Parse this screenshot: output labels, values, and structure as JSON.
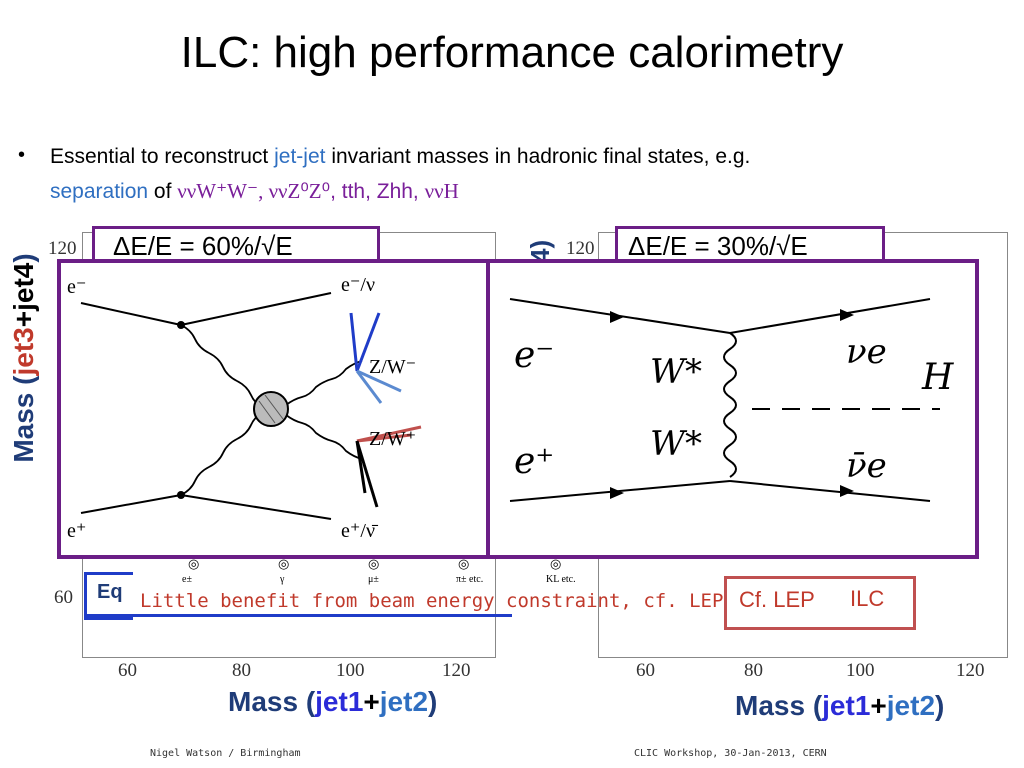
{
  "title": "ILC: high performance calorimetry",
  "bullet": {
    "marker": "•",
    "line1_a": "Essential to reconstruct ",
    "jet1": "jet",
    "dash": "-",
    "jet2": "jet",
    "line1_b": " invariant masses in hadronic final states, e.g.",
    "separation": "separation",
    "of": " of ",
    "proc1": "ννW⁺W⁻, ννZ⁰Z⁰",
    "proc2": ", tth, Zhh, ",
    "proc3": "ννH"
  },
  "left_plot": {
    "resolution": "ΔE/E = 60%/√E",
    "tick_y_top": "120",
    "tick_y_bottom": "60",
    "x_ticks": [
      "60",
      "80",
      "100",
      "120"
    ],
    "particles": [
      "e±",
      "γ",
      "μ±",
      "π± etc.",
      "KL etc."
    ],
    "eq_partial": "Eq",
    "ylabel_a": "Mass (",
    "ylabel_j3": "jet3",
    "ylabel_plus": "+",
    "ylabel_j4": "jet4",
    "ylabel_close": ")"
  },
  "right_plot": {
    "resolution": "ΔE/E = 30%/√E",
    "x_ticks": [
      "60",
      "80",
      "100",
      "120"
    ],
    "tick_y_top": "120",
    "box_label": "Cf. LEP",
    "overlap_text": "ILC"
  },
  "xlabel": {
    "a": "Mass (",
    "j1": "jet1",
    "plus": "+",
    "j2": "jet2",
    "close": ")"
  },
  "note": "Little benefit from beam energy constraint, cf. LEP",
  "feynman_left": {
    "em": "e⁻",
    "ep": "e⁺",
    "out_top": "e⁻/ν",
    "zw_minus": "Z/W⁻",
    "zw_plus": "Z/W⁺",
    "out_bottom": "e⁺/ν̄"
  },
  "feynman_right": {
    "em": "e⁻",
    "ep": "e⁺",
    "w_top": "W*",
    "w_bot": "W*",
    "nu": "νe",
    "nubar": "ν̄e",
    "h": "H"
  },
  "footer": {
    "left": "Nigel Watson / Birmingham",
    "right": "CLIC Workshop, 30-Jan-2013, CERN"
  },
  "colors": {
    "overlay_border": "#6b1e86",
    "blue_text": "#2f6fc1",
    "navy": "#1f3c78",
    "red": "#c0392b"
  }
}
